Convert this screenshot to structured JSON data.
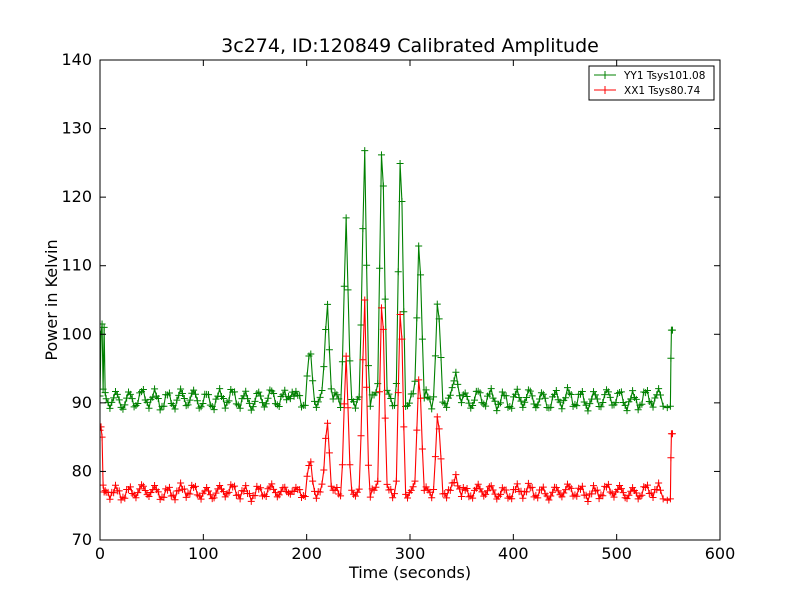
{
  "chart_data": {
    "type": "line",
    "title": "3c274, ID:120849 Calibrated Amplitude",
    "xlabel": "Time (seconds)",
    "ylabel": "Power in Kelvin",
    "xlim": [
      0,
      600
    ],
    "ylim": [
      70,
      140
    ],
    "xticks": [
      0,
      100,
      200,
      300,
      400,
      500,
      600
    ],
    "yticks": [
      70,
      80,
      90,
      100,
      110,
      120,
      130,
      140
    ],
    "grid": false,
    "legend_position": "top-right",
    "marker": "plus",
    "series": [
      {
        "name": "YY1 Tsys101.08",
        "color": "#008000",
        "base": 90.5,
        "ripple": 1.2,
        "ripple_period": 12.5,
        "x_start": 2,
        "x_end": 553,
        "step": 1.8,
        "points": [
          [
            0,
            91
          ],
          [
            1,
            100
          ],
          [
            2,
            101.5
          ],
          [
            3,
            92
          ],
          [
            4,
            101
          ],
          [
            5,
            91.5
          ],
          [
            545,
            89.5
          ],
          [
            549,
            89.3
          ],
          [
            552,
            89.5
          ],
          [
            552.5,
            96.5
          ],
          [
            553,
            100.6
          ],
          [
            554,
            100.6
          ]
        ],
        "spikes": [
          [
            185,
            92.8
          ],
          [
            203,
            97
          ],
          [
            220,
            106
          ],
          [
            238,
            117.5
          ],
          [
            256,
            128
          ],
          [
            273,
            133.5
          ],
          [
            291,
            128.5
          ],
          [
            309,
            117.5
          ],
          [
            327,
            105
          ],
          [
            345,
            95.5
          ]
        ]
      },
      {
        "name": "XX1 Tsys80.74",
        "color": "#ff0000",
        "base": 77,
        "ripple": 0.8,
        "ripple_period": 12.5,
        "x_start": 2,
        "x_end": 553,
        "step": 1.8,
        "points": [
          [
            0,
            86
          ],
          [
            1,
            86.5
          ],
          [
            2,
            85
          ],
          [
            3,
            78
          ],
          [
            4,
            77
          ],
          [
            5,
            77.2
          ],
          [
            545,
            76
          ],
          [
            549,
            75.8
          ],
          [
            552,
            76
          ],
          [
            552.5,
            82
          ],
          [
            553,
            85.5
          ],
          [
            554,
            85.5
          ]
        ],
        "spikes": [
          [
            185,
            78
          ],
          [
            203,
            81
          ],
          [
            220,
            88.5
          ],
          [
            238,
            97.5
          ],
          [
            256,
            106
          ],
          [
            273,
            109.5
          ],
          [
            291,
            106
          ],
          [
            309,
            97
          ],
          [
            327,
            88.5
          ],
          [
            345,
            80
          ]
        ]
      }
    ]
  }
}
